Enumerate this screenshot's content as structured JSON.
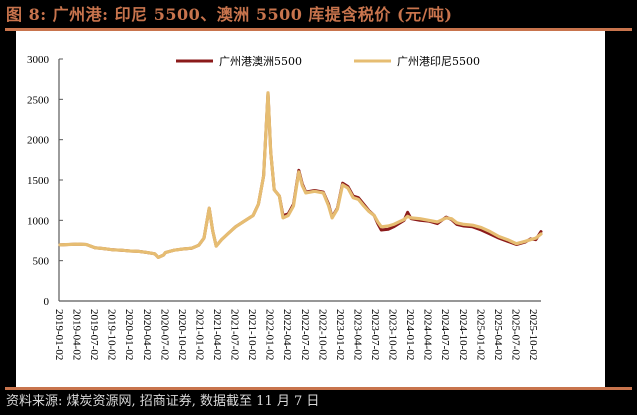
{
  "title": "图 8:  广州港: 印尼 5500、澳洲 5500 库提含税价 (元/吨)",
  "source": "资料来源: 煤炭资源网, 招商证券, 数据截至 11 月 7 日",
  "colors": {
    "background": "#000000",
    "accent": "#c8744d",
    "panel": "#ffffff",
    "series_australia": "#8b1a1a",
    "series_indonesia": "#e6bd72",
    "axis": "#595959",
    "source_text": "#d9d9d9"
  },
  "chart_data": {
    "type": "line",
    "title": "广州港: 印尼 5500、澳洲 5500 库提含税价 (元/吨)",
    "xlabel": "",
    "ylabel": "",
    "ylim": [
      0,
      3000
    ],
    "yticks": [
      0,
      500,
      1000,
      1500,
      2000,
      2500,
      3000
    ],
    "xticks": [
      "2019-01-02",
      "2019-04-02",
      "2019-07-02",
      "2019-10-02",
      "2020-01-02",
      "2020-04-02",
      "2020-07-02",
      "2020-10-02",
      "2021-01-02",
      "2021-04-02",
      "2021-07-02",
      "2021-10-02",
      "2022-01-02",
      "2022-04-02",
      "2022-07-02",
      "2022-10-02",
      "2023-01-02",
      "2023-04-02",
      "2023-07-02",
      "2023-10-02",
      "2024-01-02",
      "2024-04-02",
      "2024-07-02",
      "2024-10-02",
      "2025-01-02",
      "2025-04-02",
      "2025-07-02",
      "2025-10-02"
    ],
    "grid": false,
    "legend_position": "top",
    "x_index_note": "x is quarter index from 2019-01-02 (0) to 2025-11-07 (~27.4)",
    "series": [
      {
        "name": "广州港澳洲5500",
        "color": "#8b1a1a",
        "points": [
          [
            0,
            695
          ],
          [
            0.5,
            700
          ],
          [
            1,
            705
          ],
          [
            1.5,
            700
          ],
          [
            2,
            660
          ],
          [
            2.5,
            650
          ],
          [
            3,
            635
          ],
          [
            3.5,
            630
          ],
          [
            4,
            620
          ],
          [
            4.5,
            615
          ],
          [
            5,
            600
          ],
          [
            5.4,
            585
          ],
          [
            5.6,
            540
          ],
          [
            5.9,
            570
          ],
          [
            6,
            600
          ],
          [
            6.5,
            630
          ],
          [
            7,
            645
          ],
          [
            7.5,
            655
          ],
          [
            7.9,
            690
          ],
          [
            8.2,
            780
          ],
          [
            8.5,
            1150
          ],
          [
            8.7,
            870
          ],
          [
            8.9,
            680
          ],
          [
            9.2,
            760
          ],
          [
            9.6,
            840
          ],
          [
            10,
            920
          ],
          [
            10.5,
            990
          ],
          [
            11,
            1060
          ],
          [
            11.3,
            1200
          ],
          [
            11.6,
            1550
          ],
          [
            11.85,
            2580
          ],
          [
            12.0,
            1850
          ],
          [
            12.2,
            1380
          ],
          [
            12.5,
            1300
          ],
          [
            12.7,
            1060
          ],
          [
            13.0,
            1080
          ],
          [
            13.3,
            1200
          ],
          [
            13.6,
            1620
          ],
          [
            13.8,
            1450
          ],
          [
            14.0,
            1350
          ],
          [
            14.5,
            1370
          ],
          [
            15,
            1350
          ],
          [
            15.3,
            1200
          ],
          [
            15.5,
            1040
          ],
          [
            15.8,
            1150
          ],
          [
            16.1,
            1460
          ],
          [
            16.4,
            1420
          ],
          [
            16.7,
            1300
          ],
          [
            17,
            1280
          ],
          [
            17.3,
            1200
          ],
          [
            17.6,
            1120
          ],
          [
            17.9,
            1060
          ],
          [
            18.1,
            960
          ],
          [
            18.3,
            880
          ],
          [
            18.7,
            890
          ],
          [
            19,
            920
          ],
          [
            19.3,
            960
          ],
          [
            19.6,
            1000
          ],
          [
            19.8,
            1100
          ],
          [
            20,
            1020
          ],
          [
            20.5,
            1000
          ],
          [
            21,
            990
          ],
          [
            21.5,
            960
          ],
          [
            22,
            1040
          ],
          [
            22.3,
            1010
          ],
          [
            22.6,
            950
          ],
          [
            23,
            930
          ],
          [
            23.5,
            920
          ],
          [
            24,
            880
          ],
          [
            24.5,
            830
          ],
          [
            25,
            780
          ],
          [
            25.5,
            740
          ],
          [
            26,
            700
          ],
          [
            26.5,
            730
          ],
          [
            26.8,
            770
          ],
          [
            27.1,
            760
          ],
          [
            27.4,
            860
          ]
        ]
      },
      {
        "name": "广州港印尼5500",
        "color": "#e6bd72",
        "points": [
          [
            0,
            695
          ],
          [
            0.5,
            700
          ],
          [
            1,
            705
          ],
          [
            1.5,
            700
          ],
          [
            2,
            660
          ],
          [
            2.5,
            650
          ],
          [
            3,
            635
          ],
          [
            3.5,
            630
          ],
          [
            4,
            620
          ],
          [
            4.5,
            615
          ],
          [
            5,
            600
          ],
          [
            5.4,
            585
          ],
          [
            5.6,
            540
          ],
          [
            5.9,
            570
          ],
          [
            6,
            600
          ],
          [
            6.5,
            630
          ],
          [
            7,
            645
          ],
          [
            7.5,
            655
          ],
          [
            7.9,
            690
          ],
          [
            8.2,
            780
          ],
          [
            8.5,
            1150
          ],
          [
            8.7,
            870
          ],
          [
            8.9,
            680
          ],
          [
            9.2,
            760
          ],
          [
            9.6,
            840
          ],
          [
            10,
            920
          ],
          [
            10.5,
            990
          ],
          [
            11,
            1060
          ],
          [
            11.3,
            1200
          ],
          [
            11.6,
            1550
          ],
          [
            11.85,
            2580
          ],
          [
            12.0,
            1850
          ],
          [
            12.2,
            1380
          ],
          [
            12.5,
            1300
          ],
          [
            12.7,
            1030
          ],
          [
            13.0,
            1060
          ],
          [
            13.3,
            1180
          ],
          [
            13.6,
            1600
          ],
          [
            13.8,
            1430
          ],
          [
            14.0,
            1340
          ],
          [
            14.5,
            1360
          ],
          [
            15,
            1340
          ],
          [
            15.3,
            1180
          ],
          [
            15.5,
            1030
          ],
          [
            15.8,
            1140
          ],
          [
            16.1,
            1440
          ],
          [
            16.4,
            1400
          ],
          [
            16.7,
            1280
          ],
          [
            17,
            1260
          ],
          [
            17.3,
            1180
          ],
          [
            17.6,
            1110
          ],
          [
            17.9,
            1060
          ],
          [
            18.1,
            980
          ],
          [
            18.3,
            920
          ],
          [
            18.7,
            930
          ],
          [
            19,
            950
          ],
          [
            19.3,
            980
          ],
          [
            19.6,
            1010
          ],
          [
            19.8,
            1050
          ],
          [
            20,
            1030
          ],
          [
            20.5,
            1020
          ],
          [
            21,
            1000
          ],
          [
            21.5,
            980
          ],
          [
            22,
            1030
          ],
          [
            22.3,
            1020
          ],
          [
            22.6,
            970
          ],
          [
            23,
            950
          ],
          [
            23.5,
            940
          ],
          [
            24,
            910
          ],
          [
            24.5,
            860
          ],
          [
            25,
            800
          ],
          [
            25.5,
            760
          ],
          [
            26,
            710
          ],
          [
            26.5,
            740
          ],
          [
            26.8,
            760
          ],
          [
            27.1,
            780
          ],
          [
            27.4,
            830
          ]
        ]
      }
    ]
  },
  "legend": {
    "items": [
      {
        "label": "广州港澳洲5500",
        "color": "#8b1a1a"
      },
      {
        "label": "广州港印尼5500",
        "color": "#e6bd72"
      }
    ]
  }
}
